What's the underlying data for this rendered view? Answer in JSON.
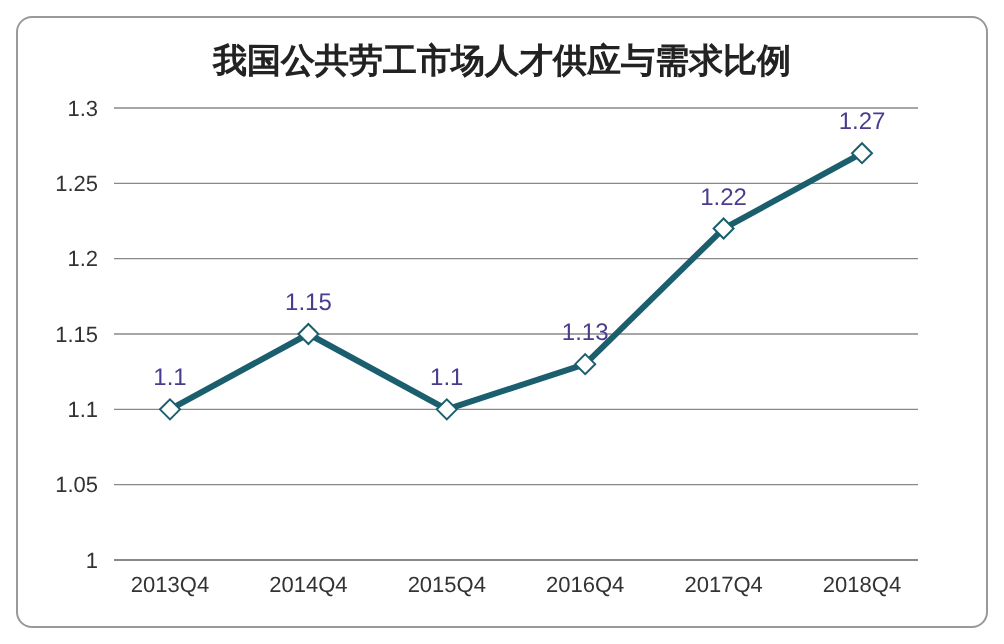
{
  "chart_data": {
    "type": "line",
    "title": "我国公共劳工市场人才供应与需求比例",
    "categories": [
      "2013Q4",
      "2014Q4",
      "2015Q4",
      "2016Q4",
      "2017Q4",
      "2018Q4"
    ],
    "series": [
      {
        "color": "#1b5e6e",
        "values": [
          1.1,
          1.15,
          1.1,
          1.13,
          1.22,
          1.27
        ]
      }
    ],
    "ylim": [
      1,
      1.3
    ],
    "yticks": [
      1,
      1.05,
      1.1,
      1.15,
      1.2,
      1.25,
      1.3
    ],
    "grid": "y",
    "legend": false,
    "marker": "diamond",
    "line_style": "solid",
    "data_labels": true
  }
}
